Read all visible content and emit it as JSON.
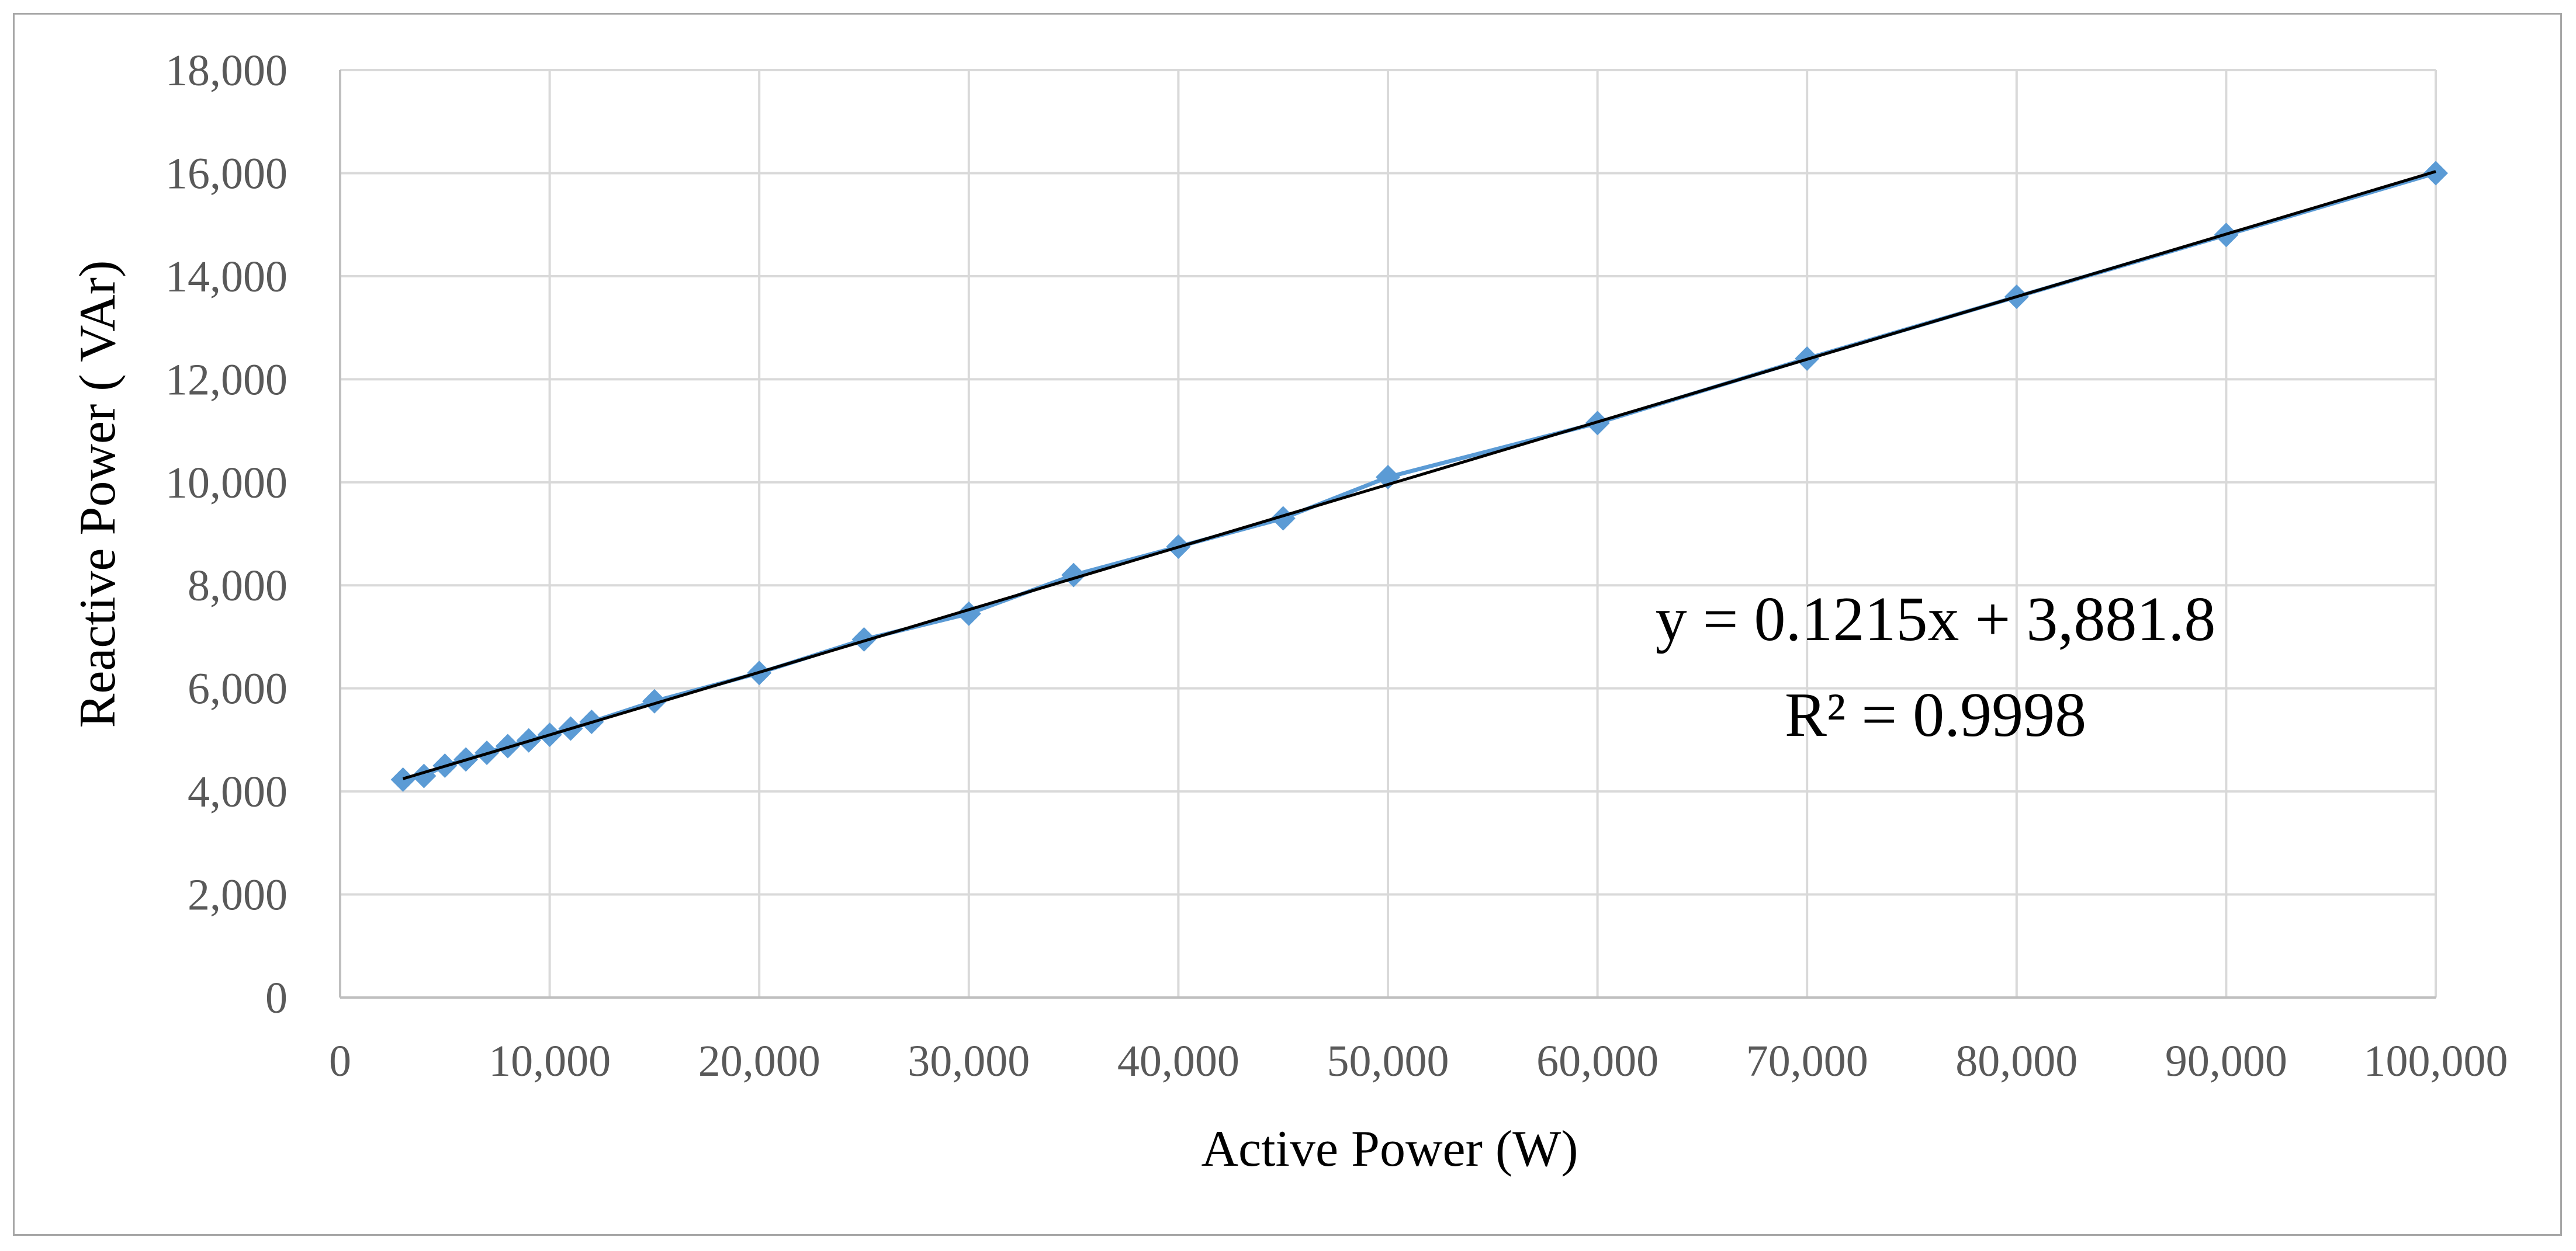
{
  "chart_data": {
    "type": "scatter",
    "title": "",
    "xlabel": "Active Power (W)",
    "ylabel": "Reactive Power ( VAr)",
    "xlim": [
      0,
      100000
    ],
    "ylim": [
      0,
      18000
    ],
    "x_ticks": [
      0,
      10000,
      20000,
      30000,
      40000,
      50000,
      60000,
      70000,
      80000,
      90000,
      100000
    ],
    "x_tick_labels": [
      "0",
      "10,000",
      "20,000",
      "30,000",
      "40,000",
      "50,000",
      "60,000",
      "70,000",
      "80,000",
      "90,000",
      "100,000"
    ],
    "y_ticks": [
      0,
      2000,
      4000,
      6000,
      8000,
      10000,
      12000,
      14000,
      16000,
      18000
    ],
    "y_tick_labels": [
      "0",
      "2,000",
      "4,000",
      "6,000",
      "8,000",
      "10,000",
      "12,000",
      "14,000",
      "16,000",
      "18,000"
    ],
    "grid": true,
    "legend": "none",
    "series": [
      {
        "name": "Reactive Power",
        "marker": "diamond",
        "line": true,
        "color": "#5b9bd5",
        "x": [
          3000,
          4000,
          5000,
          6000,
          7000,
          8000,
          9000,
          10000,
          11000,
          12000,
          15000,
          20000,
          25000,
          30000,
          35000,
          40000,
          45000,
          50000,
          60000,
          70000,
          80000,
          90000,
          100000
        ],
        "y": [
          4230,
          4300,
          4500,
          4620,
          4750,
          4880,
          4990,
          5100,
          5220,
          5350,
          5750,
          6300,
          6950,
          7450,
          8200,
          8750,
          9300,
          10100,
          11150,
          12400,
          13600,
          14800,
          16000
        ]
      }
    ],
    "trendline": {
      "type": "linear",
      "slope": 0.1215,
      "intercept": 3881.8,
      "x_range": [
        3000,
        100000
      ],
      "color": "#000000",
      "equation_text": "y = 0.1215x + 3,881.8",
      "r2_text": "R² = 0.9998"
    }
  }
}
